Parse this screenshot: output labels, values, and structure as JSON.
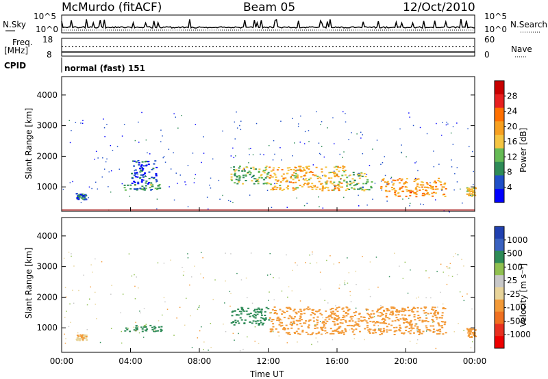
{
  "header": {
    "station": "McMurdo (fitACF)",
    "beam": "Beam 05",
    "date": "12/Oct/2010"
  },
  "top_panels": {
    "nsky_label": "N.Sky",
    "nsky_ticks": [
      "10^5",
      "10^0"
    ],
    "nsearch_label": "N.Search",
    "nsearch_ticks": [
      "10^5",
      "10^0"
    ],
    "freq_label": "Freq.",
    "freq_unit": "[MHz]",
    "freq_ticks": [
      "18",
      "8"
    ],
    "nave_label": "Nave",
    "nave_ticks": [
      "60",
      "0"
    ],
    "cpid_label": "CPID",
    "cpid_value": "normal (fast) 151"
  },
  "colors": {
    "power_scale": [
      "#0000ff",
      "#2050c8",
      "#2e8b57",
      "#66bb55",
      "#f5c542",
      "#f7a020",
      "#ff7000",
      "#e82020",
      "#c80000"
    ],
    "velocity_scale": [
      "#2040b0",
      "#3a62c0",
      "#2e8b57",
      "#90c050",
      "#c8c8c8",
      "#e8d49a",
      "#f39a38",
      "#f07020",
      "#e83020",
      "#ee0000"
    ]
  },
  "chart_data": [
    {
      "type": "heatmap",
      "name": "power",
      "ylabel": "Slant Range [km]",
      "yticks": [
        "1000",
        "2000",
        "3000",
        "4000"
      ],
      "ylim": [
        200,
        4600
      ],
      "xlim": [
        0,
        24
      ],
      "colorbar": {
        "label": "Power [dB]",
        "ticks": [
          "4",
          "8",
          "12",
          "16",
          "20",
          "24",
          "28"
        ],
        "range": [
          0,
          32
        ]
      },
      "echo_regions": [
        {
          "t_start": 0.8,
          "t_end": 1.4,
          "r_low": 600,
          "r_high": 800,
          "value": 6
        },
        {
          "t_start": 3.6,
          "t_end": 5.8,
          "r_low": 900,
          "r_high": 1100,
          "value": 10
        },
        {
          "t_start": 4.0,
          "t_end": 5.5,
          "r_low": 1100,
          "r_high": 1900,
          "value": 5
        },
        {
          "t_start": 9.8,
          "t_end": 12.0,
          "r_low": 1100,
          "r_high": 1700,
          "value": 12
        },
        {
          "t_start": 12.0,
          "t_end": 16.5,
          "r_low": 900,
          "r_high": 1700,
          "value": 18
        },
        {
          "t_start": 16.5,
          "t_end": 18.0,
          "r_low": 900,
          "r_high": 1500,
          "value": 12
        },
        {
          "t_start": 18.5,
          "t_end": 22.3,
          "r_low": 700,
          "r_high": 1300,
          "value": 20
        },
        {
          "t_start": 23.5,
          "t_end": 24.0,
          "r_low": 700,
          "r_high": 1000,
          "value": 16
        }
      ]
    },
    {
      "type": "heatmap",
      "name": "velocity",
      "ylabel": "Slant Range [km]",
      "xlabel": "Time UT",
      "yticks": [
        "1000",
        "2000",
        "3000",
        "4000"
      ],
      "ylim": [
        200,
        4600
      ],
      "xticks": [
        "00:00",
        "04:00",
        "08:00",
        "12:00",
        "16:00",
        "20:00",
        "00:00"
      ],
      "xlim": [
        0,
        24
      ],
      "colorbar": {
        "label": "Velocity [m s⁻¹]",
        "ticks": [
          "1000",
          "500",
          "100",
          "25",
          "-25",
          "-100",
          "-500",
          "-1000"
        ]
      },
      "echo_regions": [
        {
          "t_start": 0.8,
          "t_end": 1.4,
          "r_low": 600,
          "r_high": 800,
          "value": -100
        },
        {
          "t_start": 3.6,
          "t_end": 5.8,
          "r_low": 900,
          "r_high": 1100,
          "value": 150
        },
        {
          "t_start": 9.8,
          "t_end": 12.0,
          "r_low": 1100,
          "r_high": 1700,
          "value": 300
        },
        {
          "t_start": 12.0,
          "t_end": 22.3,
          "r_low": 800,
          "r_high": 1700,
          "value": -300
        },
        {
          "t_start": 23.5,
          "t_end": 24.0,
          "r_low": 700,
          "r_high": 1000,
          "value": -200
        }
      ]
    }
  ]
}
